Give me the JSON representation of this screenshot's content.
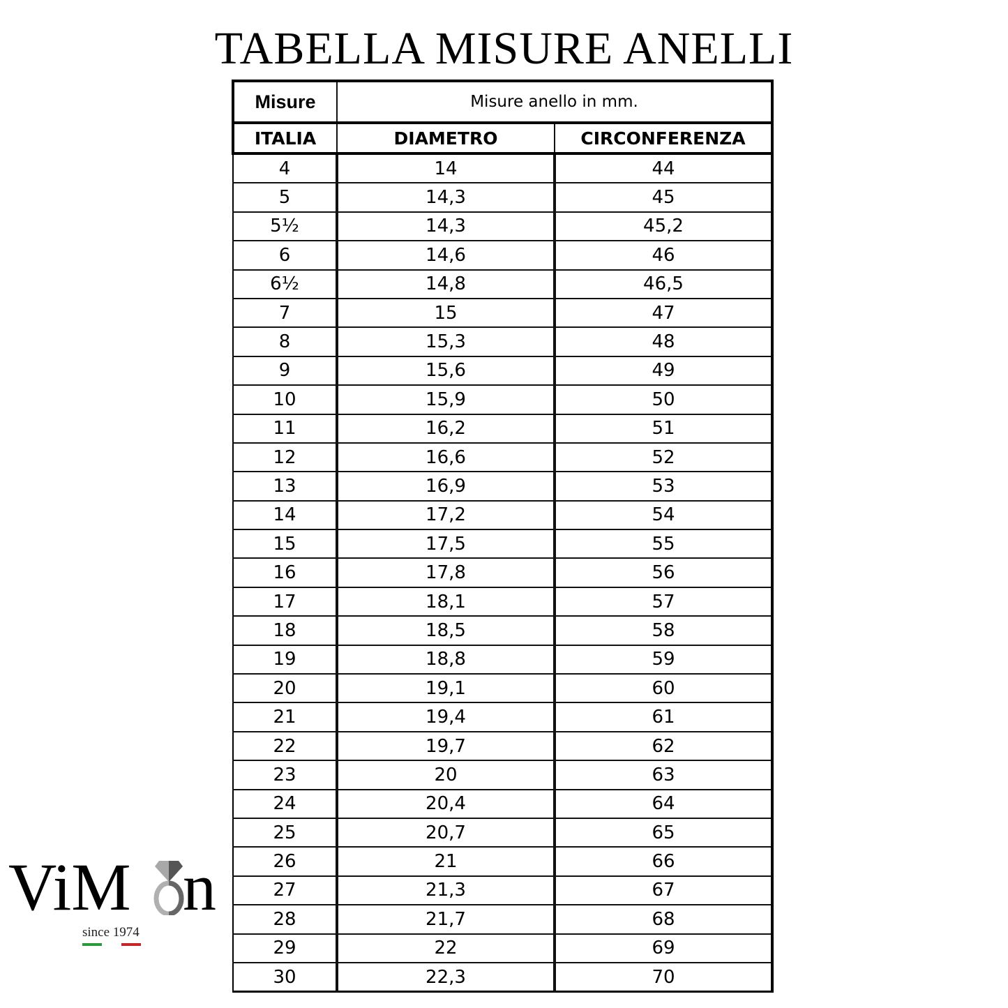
{
  "title": "TABELLA MISURE ANELLI",
  "table": {
    "header1": [
      "Misure",
      "Misure anello in mm."
    ],
    "header2": [
      "ITALIA",
      "DIAMETRO",
      "CIRCONFERENZA"
    ],
    "rows": [
      [
        "4",
        "14",
        "44"
      ],
      [
        "5",
        "14,3",
        "45"
      ],
      [
        "5½",
        "14,3",
        "45,2"
      ],
      [
        "6",
        "14,6",
        "46"
      ],
      [
        "6½",
        "14,8",
        "46,5"
      ],
      [
        "7",
        "15",
        "47"
      ],
      [
        "8",
        "15,3",
        "48"
      ],
      [
        "9",
        "15,6",
        "49"
      ],
      [
        "10",
        "15,9",
        "50"
      ],
      [
        "11",
        "16,2",
        "51"
      ],
      [
        "12",
        "16,6",
        "52"
      ],
      [
        "13",
        "16,9",
        "53"
      ],
      [
        "14",
        "17,2",
        "54"
      ],
      [
        "15",
        "17,5",
        "55"
      ],
      [
        "16",
        "17,8",
        "56"
      ],
      [
        "17",
        "18,1",
        "57"
      ],
      [
        "18",
        "18,5",
        "58"
      ],
      [
        "19",
        "18,8",
        "59"
      ],
      [
        "20",
        "19,1",
        "60"
      ],
      [
        "21",
        "19,4",
        "61"
      ],
      [
        "22",
        "19,7",
        "62"
      ],
      [
        "23",
        "20",
        "63"
      ],
      [
        "24",
        "20,4",
        "64"
      ],
      [
        "25",
        "20,7",
        "65"
      ],
      [
        "26",
        "21",
        "66"
      ],
      [
        "27",
        "21,3",
        "67"
      ],
      [
        "28",
        "21,7",
        "68"
      ],
      [
        "29",
        "22",
        "69"
      ],
      [
        "30",
        "22,3",
        "70"
      ]
    ]
  },
  "logo": {
    "brand_left": "ViM",
    "brand_right": "n",
    "since": "since 1974",
    "flag_colors": [
      "#2a9a3f",
      "#c8242a"
    ]
  }
}
